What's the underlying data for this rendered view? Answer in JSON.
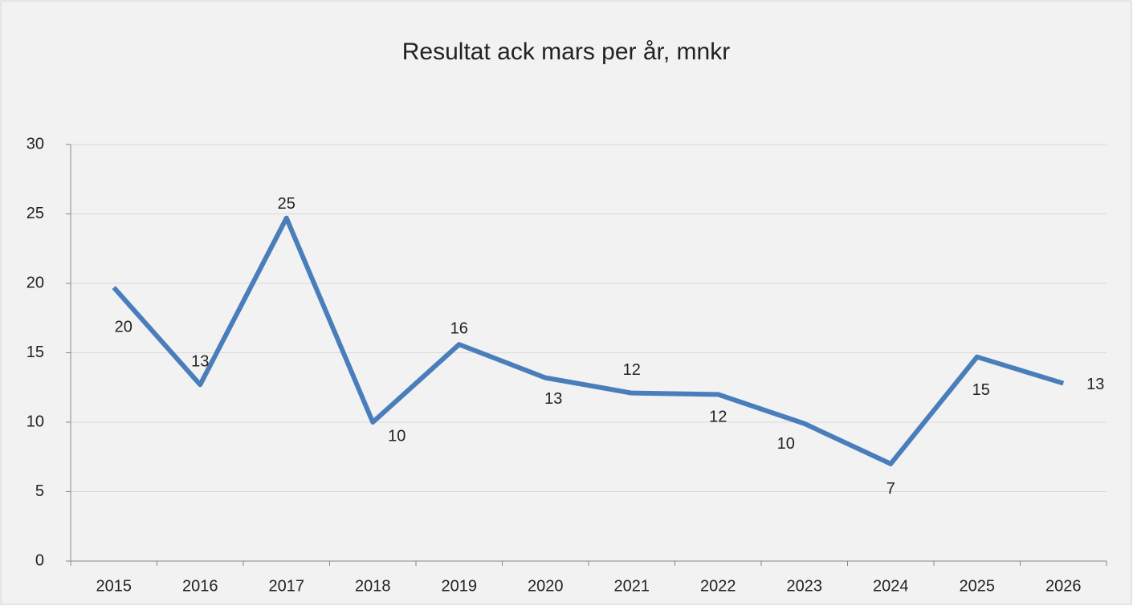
{
  "chart_data": {
    "type": "line",
    "title": "Resultat ack mars per år, mnkr",
    "categories": [
      "2015",
      "2016",
      "2017",
      "2018",
      "2019",
      "2020",
      "2021",
      "2022",
      "2023",
      "2024",
      "2025",
      "2026"
    ],
    "series": [
      {
        "name": "Resultat ack mars",
        "color": "#4a7ebb",
        "values": [
          19.7,
          12.7,
          24.7,
          10.0,
          15.6,
          13.2,
          12.1,
          12.0,
          9.9,
          7.0,
          14.7,
          12.8
        ],
        "value_labels": [
          "20",
          "13",
          "25",
          "10",
          "16",
          "13",
          "12",
          "12",
          "10",
          "7",
          "15",
          "13"
        ]
      }
    ],
    "ylim": [
      0,
      30
    ],
    "yticks": [
      0,
      5,
      10,
      15,
      20,
      25,
      30
    ],
    "grid": true
  }
}
